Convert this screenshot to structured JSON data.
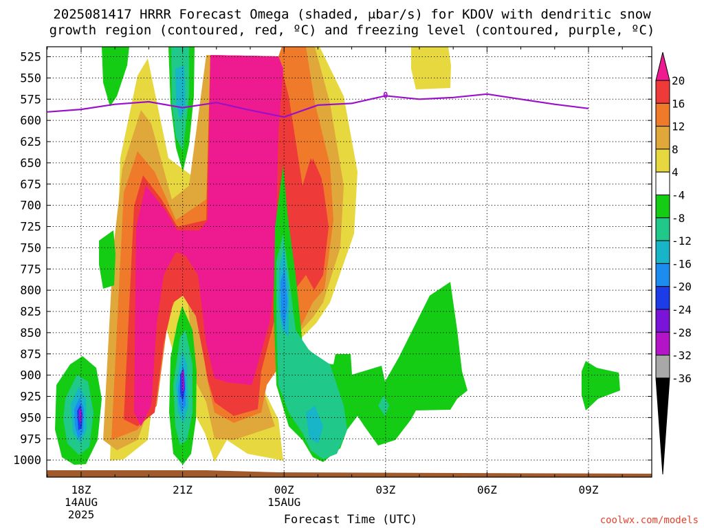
{
  "chart_data": {
    "type": "heatmap",
    "title_line1": "2025081417 HRRR Forecast Omega (shaded, μbar/s) for KDOV with dendritic snow",
    "title_line2": "growth region (contoured, red, ºC) and freezing level (contoured, purple, ºC)",
    "xlabel": "Forecast Time (UTC)",
    "x_ticks": [
      {
        "label": "18Z",
        "sub": [
          "14AUG",
          "2025"
        ]
      },
      {
        "label": "21Z",
        "sub": []
      },
      {
        "label": "00Z",
        "sub": [
          "15AUG"
        ]
      },
      {
        "label": "03Z",
        "sub": []
      },
      {
        "label": "06Z",
        "sub": []
      },
      {
        "label": "09Z",
        "sub": []
      }
    ],
    "y_ticks": [
      525,
      550,
      575,
      600,
      625,
      650,
      675,
      700,
      725,
      750,
      775,
      800,
      825,
      850,
      875,
      900,
      925,
      950,
      975,
      1000
    ],
    "ylabel": "",
    "ylim": [
      1000,
      515
    ],
    "grid": true,
    "colorbar": {
      "labels": [
        "20",
        "16",
        "12",
        "8",
        "4",
        "-4",
        "-8",
        "-12",
        "-16",
        "-20",
        "-24",
        "-28",
        "-32",
        "-36"
      ],
      "colors": [
        "#ee1a8f",
        "#ef3a3a",
        "#ee7a2a",
        "#e0a83a",
        "#e8d840",
        "#ffffff",
        "#14cc14",
        "#20c88a",
        "#18b4c8",
        "#1c8cf0",
        "#1c3ce8",
        "#7a14d8",
        "#b414c8",
        "#a8a8a8",
        "#000000"
      ]
    },
    "freezing_level": {
      "label": "0",
      "hours": [
        17,
        18,
        19,
        20,
        21,
        22,
        23,
        24,
        25,
        26,
        27,
        28,
        29,
        30,
        31,
        32,
        33
      ],
      "pressure_hpa": [
        590,
        587,
        581,
        578,
        585,
        579,
        588,
        596,
        582,
        580,
        571,
        575,
        573,
        569,
        575,
        581,
        586
      ]
    }
  },
  "credit": "coolwx.com/models",
  "colors": {
    "magenta": "#ee1a8f",
    "red": "#ef3a3a",
    "orange": "#ee7a2a",
    "dark_yellow": "#e0a83a",
    "yellow": "#e8d840",
    "green": "#14cc14",
    "teal": "#20c88a",
    "cyan": "#18b4c8",
    "blue": "#1c8cf0",
    "dark_blue": "#1c3ce8",
    "purple": "#a514c8",
    "ground": "#a05a2c",
    "freezing_line": "#9a10c8"
  }
}
